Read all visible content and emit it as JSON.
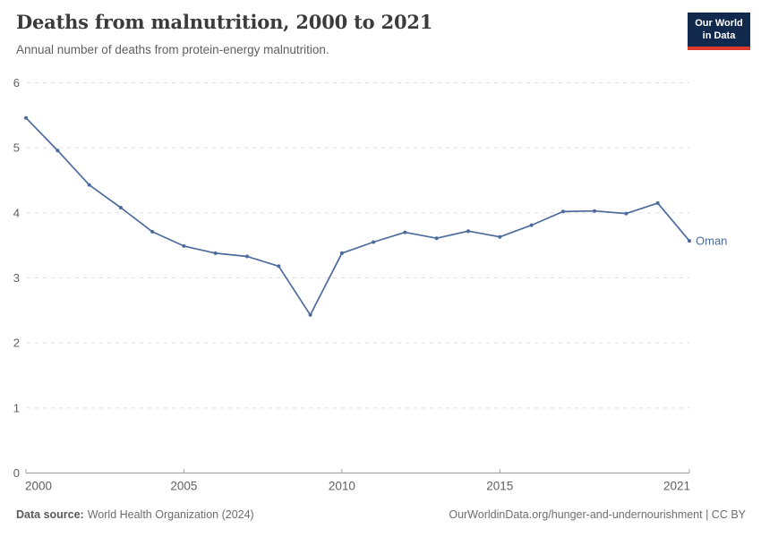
{
  "header": {
    "title": "Deaths from malnutrition, 2000 to 2021",
    "subtitle": "Annual number of deaths from protein-energy malnutrition.",
    "logo": {
      "line1": "Our World",
      "line2": "in Data"
    }
  },
  "chart_data": {
    "type": "line",
    "title": "Deaths from malnutrition, 2000 to 2021",
    "subtitle": "Annual number of deaths from protein-energy malnutrition.",
    "xlabel": "",
    "ylabel": "",
    "x": [
      2000,
      2001,
      2002,
      2003,
      2004,
      2005,
      2006,
      2007,
      2008,
      2009,
      2010,
      2011,
      2012,
      2013,
      2014,
      2015,
      2016,
      2017,
      2018,
      2019,
      2020,
      2021
    ],
    "series": [
      {
        "name": "Oman",
        "color": "#4C6A9C",
        "values": [
          5.46,
          4.96,
          4.43,
          4.08,
          3.71,
          3.49,
          3.38,
          3.33,
          3.18,
          2.43,
          3.38,
          3.55,
          3.7,
          3.61,
          3.72,
          3.63,
          3.81,
          4.02,
          4.03,
          3.99,
          4.15,
          3.57
        ]
      }
    ],
    "xlim": [
      2000,
      2021
    ],
    "ylim": [
      0,
      6
    ],
    "y_ticks": [
      0,
      1,
      2,
      3,
      4,
      5,
      6
    ],
    "x_tick_labels": [
      2000,
      2005,
      2010,
      2015,
      2021
    ],
    "grid": "horizontal-dashed",
    "legend_position": "end-of-line-label",
    "end_label": "Oman"
  },
  "colors": {
    "line": "#4C6A9C",
    "grid": "#dedede",
    "axis": "#9a9a9a",
    "tick": "#a6a6a6",
    "tick_label": "#606060",
    "title": "#3b3b3b",
    "subtitle": "#5f5f5f",
    "footer": "#6e6e6e",
    "logo_bg": "#12294E",
    "logo_red": "#D93A2B"
  },
  "footer": {
    "source_label": "Data source:",
    "source_value": "World Health Organization (2024)",
    "license": "OurWorldinData.org/hunger-and-undernourishment | CC BY"
  }
}
